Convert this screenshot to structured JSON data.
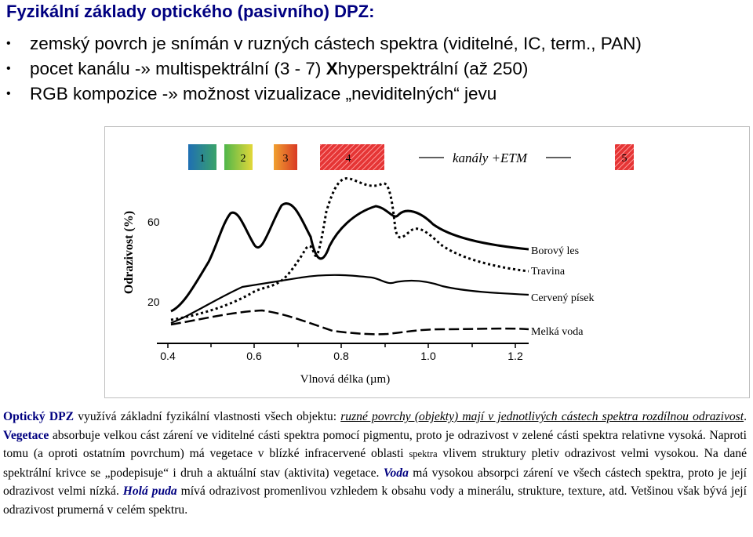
{
  "title": "Fyzikální základy optického (pasivního) DPZ:",
  "bullets": [
    {
      "text": "zemský povrch je snímán v ruzných cástech spektra (viditelné, IC, term., PAN)"
    },
    {
      "pre": "pocet kanálu -» multispektrální (3 - 7) ",
      "x": "X",
      "post": " hyperspektrální (až 250)"
    },
    {
      "text": "RGB kompozice -» možnost vizualizace „neviditelných“ jevu"
    }
  ],
  "figure": {
    "bands": [
      "1",
      "2",
      "3",
      "4",
      "5"
    ],
    "band_colors": [
      "#2c8a7f",
      "#a6cc2a",
      "#e46a1c",
      "#e34040",
      "#e34040"
    ],
    "band_label": "kanály +ETM",
    "ylabel": "Odrazivost (%)",
    "xlabel": "Vlnová délka (µm)",
    "y_ticks": [
      "60",
      "20"
    ],
    "x_ticks": [
      "0.4",
      "0.6",
      "0.8",
      "1.0",
      "1.2"
    ],
    "legend": [
      "Borový les",
      "Travina",
      "Cervený písek",
      "Melká voda"
    ]
  },
  "paragraph": {
    "t1": "Optický DPZ",
    "t2": " využívá základní fyzikální vlastnosti všech objektu: ",
    "t3": "ruzné povrchy (objekty) mají v jednotlivých cástech spektra rozdílnou odrazivost",
    "t4": ". ",
    "t5": "Vegetace",
    "t6": " absorbuje velkou cást zárení ve viditelné cásti spektra pomocí pigmentu, proto je odrazivost v zelené cásti spektra relativne vysoká. Naproti tomu (a oproti ostatním povrchum) má vegetace v blízké infracervené oblasti ",
    "t7": "spektra",
    "t8": " vlivem struktury pletiv odrazivost velmi vysokou. Na dané spektrální krivce se „podepisuje“ i druh a aktuální stav (aktivita) vegetace. ",
    "t9": "Voda",
    "t10": " má vysokou absorpci zárení ve všech cástech spektra, proto je její odrazivost velmi nízká. ",
    "t11": "Holá puda",
    "t12": " mívá odrazivost promenlivou vzhledem k obsahu vody a minerálu, strukture, texture, atd. Vetšinou však bývá její odrazivost prumerná v celém spektru."
  }
}
